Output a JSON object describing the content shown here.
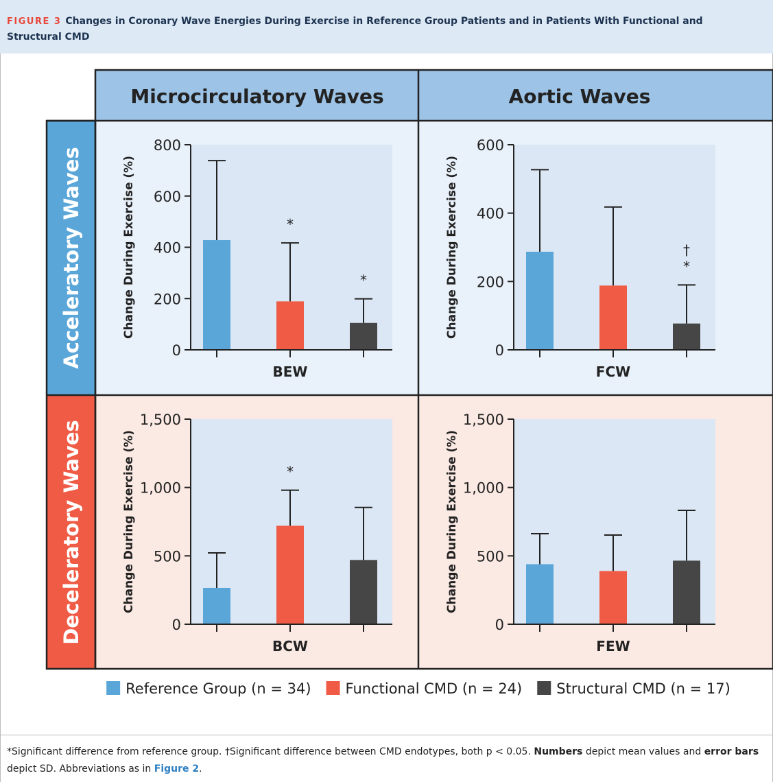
{
  "header": {
    "label": "FIGURE 3",
    "title": "Changes in Coronary Wave Energies During Exercise in Reference Group Patients and in Patients With Functional and Structural CMD"
  },
  "columns": [
    "Microcirculatory Waves",
    "Aortic Waves"
  ],
  "rows": [
    "Acceleratory Waves",
    "Deceleratory Waves"
  ],
  "legend": [
    {
      "name": "Reference Group (n = 34)",
      "color": "#5aa6d8"
    },
    {
      "name": "Functional CMD (n = 24)",
      "color": "#ef5b45"
    },
    {
      "name": "Structural CMD (n = 17)",
      "color": "#464646"
    }
  ],
  "chart_data": [
    {
      "type": "bar",
      "xlabel": "BEW",
      "ylabel": "Change During Exercise (%)",
      "values": [
        428,
        189,
        105
      ],
      "errors": [
        310,
        228,
        94
      ],
      "annotations": [
        null,
        [
          "*"
        ],
        [
          "*"
        ]
      ],
      "ylim": [
        0,
        800
      ],
      "yticks": [
        0,
        200,
        400,
        600,
        800
      ]
    },
    {
      "type": "bar",
      "xlabel": "FCW",
      "ylabel": "Change During Exercise (%)",
      "values": [
        287,
        188,
        77
      ],
      "errors": [
        240,
        230,
        113
      ],
      "annotations": [
        null,
        null,
        [
          "*",
          "†"
        ]
      ],
      "ylim": [
        0,
        600
      ],
      "yticks": [
        0,
        200,
        400,
        600
      ]
    },
    {
      "type": "bar",
      "xlabel": "BCW",
      "ylabel": "Change During Exercise (%)",
      "values": [
        266,
        720,
        470
      ],
      "errors": [
        256,
        260,
        384
      ],
      "annotations": [
        null,
        [
          "*"
        ],
        null
      ],
      "ylim": [
        0,
        1500
      ],
      "yticks": [
        0,
        500,
        {
          "value": 1000,
          "label": "1,000"
        },
        {
          "value": 1500,
          "label": "1,500"
        }
      ]
    },
    {
      "type": "bar",
      "xlabel": "FEW",
      "ylabel": "Change During Exercise (%)",
      "values": [
        439,
        389,
        465
      ],
      "errors": [
        223,
        263,
        368
      ],
      "annotations": [
        null,
        null,
        null
      ],
      "ylim": [
        0,
        1500
      ],
      "yticks": [
        0,
        500,
        {
          "value": 1000,
          "label": "1,000"
        },
        {
          "value": 1500,
          "label": "1,500"
        }
      ]
    }
  ],
  "caption": [
    {
      "text": "*Significant difference from reference group. †Significant difference between CMD endotypes, both p < 0.05. ",
      "style": "normal"
    },
    {
      "text": "Numbers",
      "style": "bold"
    },
    {
      "text": " depict mean values and ",
      "style": "normal"
    },
    {
      "text": "error bars",
      "style": "bold"
    },
    {
      "text": " depict SD. Abbreviations as in ",
      "style": "normal"
    },
    {
      "text": "Figure 2",
      "style": "link"
    },
    {
      "text": ".",
      "style": "normal"
    }
  ]
}
